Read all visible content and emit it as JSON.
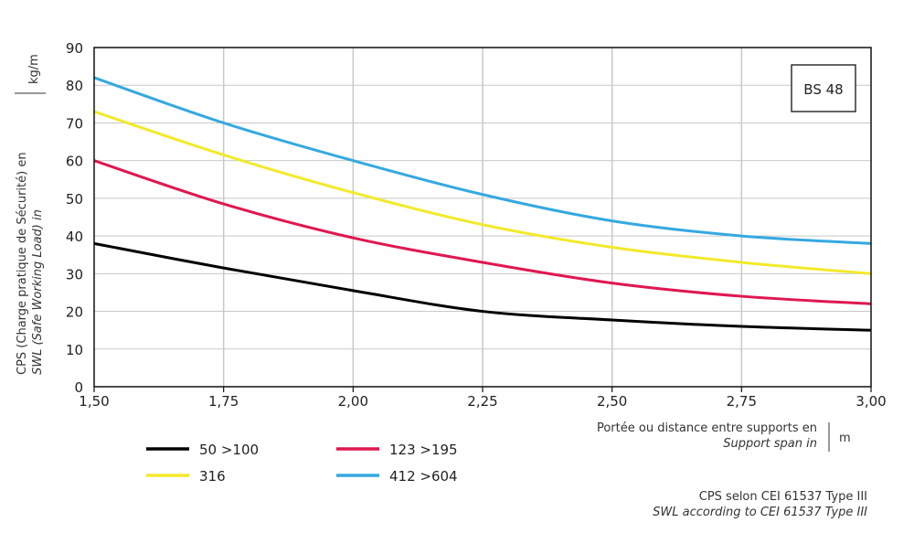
{
  "chart_data": {
    "type": "line",
    "badge": "BS 48",
    "xlabel": {
      "line1": "Portée ou distance entre supports en",
      "line2": "Support span in",
      "unit": "m"
    },
    "ylabel": {
      "line1": "CPS (Charge pratique de Sécurité) en",
      "line2": "SWL (Safe Working Load) in",
      "unit": "kg/m"
    },
    "footnote": {
      "line1": "CPS selon CEI 61537 Type III",
      "line2": "SWL according to CEI 61537 Type III"
    },
    "xlim": [
      1.5,
      3.0
    ],
    "ylim": [
      0,
      90
    ],
    "x_ticks": [
      "1,50",
      "1,75",
      "2,00",
      "2,25",
      "2,50",
      "2,75",
      "3,00"
    ],
    "y_ticks": [
      "0",
      "10",
      "20",
      "30",
      "40",
      "50",
      "60",
      "70",
      "80",
      "90"
    ],
    "grid": true,
    "legend_position": "bottom-left",
    "x": [
      1.5,
      1.75,
      2.0,
      2.25,
      2.5,
      2.75,
      3.0
    ],
    "series": [
      {
        "name": "50 >100",
        "color": "#000000",
        "values": [
          38,
          31.5,
          25.5,
          20,
          17.7,
          16,
          15
        ]
      },
      {
        "name": "123 >195",
        "color": "#e0174f",
        "values": [
          60,
          48.5,
          39.5,
          33,
          27.5,
          24,
          22
        ]
      },
      {
        "name": "316",
        "color": "#f2ea2a",
        "values": [
          73,
          61.5,
          51.5,
          43,
          37,
          33,
          30
        ]
      },
      {
        "name": "412 >604",
        "color": "#35a9e0",
        "values": [
          82,
          70,
          60,
          51,
          44,
          40,
          38
        ]
      }
    ]
  }
}
